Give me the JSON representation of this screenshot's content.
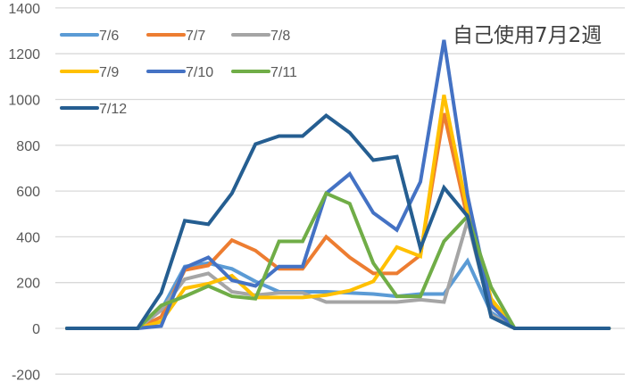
{
  "chart_data": {
    "type": "line",
    "title": "自己使用7月2週",
    "xlabel": "",
    "ylabel": "",
    "ylim": [
      -200,
      1400
    ],
    "yticks": [
      1400,
      1200,
      1000,
      800,
      600,
      400,
      200,
      0,
      -200
    ],
    "grid": true,
    "legend_position": "top-left (inside plot)",
    "x": [
      0,
      1,
      2,
      3,
      4,
      5,
      6,
      7,
      8,
      9,
      10,
      11,
      12,
      13,
      14,
      15,
      16,
      17,
      18,
      19,
      20,
      21,
      22,
      23
    ],
    "series": [
      {
        "name": "7/6",
        "color": "#5B9BD5",
        "values": [
          0,
          0,
          0,
          0,
          80,
          270,
          285,
          260,
          205,
          160,
          160,
          160,
          155,
          150,
          140,
          150,
          150,
          295,
          70,
          0,
          0,
          0,
          0,
          0
        ]
      },
      {
        "name": "7/7",
        "color": "#ED7D31",
        "values": [
          0,
          0,
          0,
          0,
          50,
          255,
          275,
          385,
          340,
          260,
          260,
          400,
          310,
          240,
          240,
          320,
          940,
          480,
          120,
          0,
          0,
          0,
          0,
          0
        ]
      },
      {
        "name": "7/8",
        "color": "#A5A5A5",
        "values": [
          0,
          0,
          0,
          0,
          80,
          215,
          240,
          160,
          145,
          155,
          155,
          115,
          115,
          115,
          115,
          125,
          115,
          470,
          60,
          0,
          0,
          0,
          0,
          0
        ]
      },
      {
        "name": "7/9",
        "color": "#FFC000",
        "values": [
          0,
          0,
          0,
          0,
          30,
          175,
          195,
          230,
          135,
          135,
          135,
          145,
          165,
          205,
          355,
          315,
          1020,
          510,
          130,
          0,
          0,
          0,
          0,
          0
        ]
      },
      {
        "name": "7/10",
        "color": "#4472C4",
        "values": [
          0,
          0,
          0,
          0,
          10,
          265,
          310,
          210,
          185,
          270,
          270,
          590,
          675,
          505,
          430,
          640,
          1260,
          580,
          100,
          0,
          0,
          0,
          0,
          0
        ]
      },
      {
        "name": "7/11",
        "color": "#70AD47",
        "values": [
          0,
          0,
          0,
          0,
          100,
          140,
          185,
          140,
          130,
          380,
          380,
          590,
          545,
          285,
          140,
          140,
          380,
          490,
          180,
          0,
          0,
          0,
          0,
          0
        ]
      },
      {
        "name": "7/12",
        "color": "#255E91",
        "values": [
          0,
          0,
          0,
          0,
          155,
          470,
          455,
          590,
          805,
          840,
          840,
          930,
          855,
          735,
          750,
          350,
          615,
          490,
          50,
          0,
          0,
          0,
          0,
          0
        ]
      }
    ]
  },
  "legend": {
    "rows": [
      [
        "7/6",
        "7/7",
        "7/8"
      ],
      [
        "7/9",
        "7/10",
        "7/11"
      ],
      [
        "7/12"
      ]
    ]
  },
  "colors": {
    "gridline": "#D9D9D9",
    "tick_text": "#595959",
    "title_text": "#404040"
  }
}
